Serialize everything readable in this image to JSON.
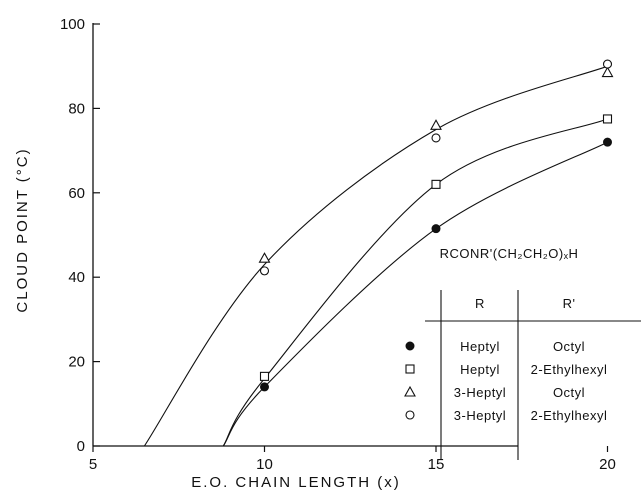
{
  "chart_data": {
    "type": "scatter",
    "xlabel": "E.O. CHAIN LENGTH (x)",
    "ylabel": "CLOUD POINT (°C)",
    "xlim": [
      5,
      20.5
    ],
    "ylim": [
      0,
      100
    ],
    "x_ticks": [
      "5",
      "10",
      "15",
      "20"
    ],
    "y_ticks": [
      "0",
      "20",
      "40",
      "60",
      "80",
      "100"
    ],
    "formula": "RCONR'(CH₂CH₂O)ₓH",
    "legend_headers": {
      "r": "R",
      "r_prime": "R'"
    },
    "series": [
      {
        "marker": "filled-circle",
        "r": "Heptyl",
        "r_prime": "Octyl",
        "points": [
          [
            10,
            14
          ],
          [
            15,
            51.5
          ],
          [
            20,
            72
          ]
        ],
        "curve": [
          [
            8.8,
            0
          ],
          [
            10,
            14
          ],
          [
            15,
            51.5
          ],
          [
            20,
            72
          ]
        ]
      },
      {
        "marker": "open-square",
        "r": "Heptyl",
        "r_prime": "2-Ethylhexyl",
        "points": [
          [
            10,
            16.5
          ],
          [
            15,
            62
          ],
          [
            20,
            77.5
          ]
        ],
        "curve": [
          [
            8.8,
            0
          ],
          [
            10,
            16
          ],
          [
            15,
            62
          ],
          [
            20,
            77.5
          ]
        ]
      },
      {
        "marker": "open-triangle",
        "r": "3-Heptyl",
        "r_prime": "Octyl",
        "points": [
          [
            10,
            44.5
          ],
          [
            15,
            76
          ],
          [
            20,
            88.5
          ]
        ],
        "curve": [
          [
            6.5,
            0
          ],
          [
            10,
            43
          ],
          [
            15,
            75
          ],
          [
            20,
            90
          ]
        ]
      },
      {
        "marker": "open-circle",
        "r": "3-Heptyl",
        "r_prime": "2-Ethylhexyl",
        "points": [
          [
            10,
            41.5
          ],
          [
            15,
            73
          ],
          [
            20,
            90.5
          ]
        ],
        "curve": [
          [
            6.5,
            0
          ],
          [
            10,
            43
          ],
          [
            15,
            75
          ],
          [
            20,
            90
          ]
        ]
      }
    ]
  }
}
